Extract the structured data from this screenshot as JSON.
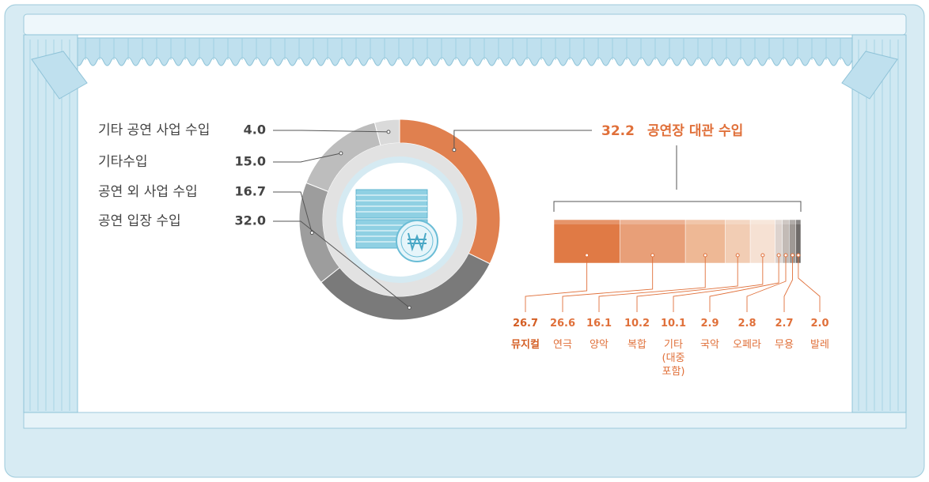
{
  "chart_data": [
    {
      "type": "donut",
      "categories": [
        "공연장 대관 수입",
        "공연 입장 수입",
        "공연 외 사업 수입",
        "기타수입",
        "기타 공연 사업 수입"
      ],
      "values": [
        32.2,
        32.0,
        16.7,
        15.0,
        4.0
      ],
      "value_labels": [
        "32.2",
        "32.0",
        "16.7",
        "15.0",
        "4.0"
      ],
      "colors": [
        "#e0804f",
        "#7a7a7a",
        "#9d9d9d",
        "#bdbdbd",
        "#dadada"
      ]
    },
    {
      "type": "stacked-bar",
      "categories": [
        "뮤지컬",
        "연극",
        "양악",
        "복합",
        "기타 (대중 포함)",
        "국악",
        "오페라",
        "무용",
        "발레"
      ],
      "values": [
        26.7,
        26.6,
        16.1,
        10.2,
        10.1,
        2.9,
        2.8,
        2.7,
        2.0
      ],
      "value_labels": [
        "26.7",
        "26.6",
        "16.1",
        "10.2",
        "10.1",
        "2.9",
        "2.8",
        "2.7",
        "2.0"
      ],
      "colors": [
        "#e07a45",
        "#e89f78",
        "#eeb895",
        "#f2cdb4",
        "#f6e1d3",
        "#ddd3ce",
        "#c3bbb6",
        "#9f9995",
        "#6f6b69"
      ]
    }
  ]
}
